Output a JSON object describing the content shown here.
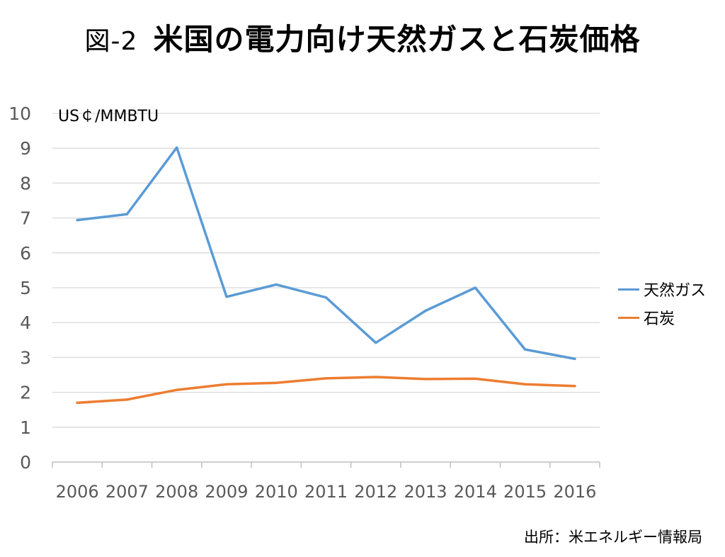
{
  "header": {
    "title_num": "図-2",
    "title_main": "米国の電力向け天然ガスと石炭価格"
  },
  "chart_data": {
    "type": "line",
    "unit_label": "US￠/MMBTU",
    "categories": [
      "2006",
      "2007",
      "2008",
      "2009",
      "2010",
      "2011",
      "2012",
      "2013",
      "2014",
      "2015",
      "2016"
    ],
    "ylim": [
      0,
      10
    ],
    "yticks": [
      "0",
      "1",
      "2",
      "3",
      "4",
      "5",
      "6",
      "7",
      "8",
      "9",
      "10"
    ],
    "grid": true,
    "legend_position": "right",
    "series": [
      {
        "name": "天然ガス",
        "color": "#5b9bd5",
        "values": [
          6.94,
          7.11,
          9.02,
          4.74,
          5.09,
          4.72,
          3.42,
          4.34,
          5.0,
          3.23,
          2.96
        ]
      },
      {
        "name": "石炭",
        "color": "#ed7d31",
        "values": [
          1.7,
          1.79,
          2.07,
          2.23,
          2.27,
          2.4,
          2.44,
          2.38,
          2.39,
          2.23,
          2.18
        ]
      }
    ]
  },
  "footer": {
    "source": "出所：米エネルギー情報局"
  }
}
